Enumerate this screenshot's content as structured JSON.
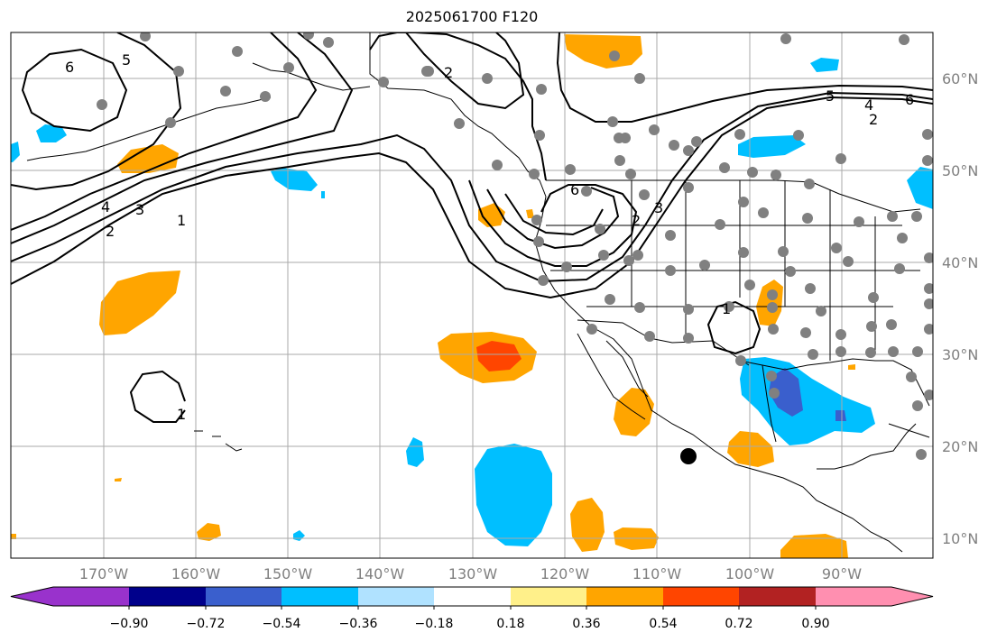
{
  "title": "2025061700 F120",
  "map": {
    "lon_labels": [
      "170°W",
      "160°W",
      "150°W",
      "140°W",
      "130°W",
      "120°W",
      "110°W",
      "100°W",
      "90°W"
    ],
    "lat_labels": [
      "60°N",
      "50°N",
      "40°N",
      "30°N",
      "20°N",
      "10°N"
    ],
    "contour_labels": [
      "6",
      "5",
      "4",
      "3",
      "2",
      "1",
      "2",
      "6",
      "5",
      "4",
      "2",
      "6",
      "2",
      "3",
      "1",
      "1"
    ]
  },
  "colorbar": {
    "ticks": [
      "−0.90",
      "−0.72",
      "−0.54",
      "−0.36",
      "−0.18",
      "0.18",
      "0.36",
      "0.54",
      "0.72",
      "0.90"
    ],
    "colors": [
      "#9932cc",
      "#00008b",
      "#3a5fcd",
      "#00bfff",
      "#b0e2ff",
      "#ffffff",
      "#fff08a",
      "#ffa500",
      "#ff4500",
      "#b22222",
      "#ff8fb0"
    ]
  }
}
